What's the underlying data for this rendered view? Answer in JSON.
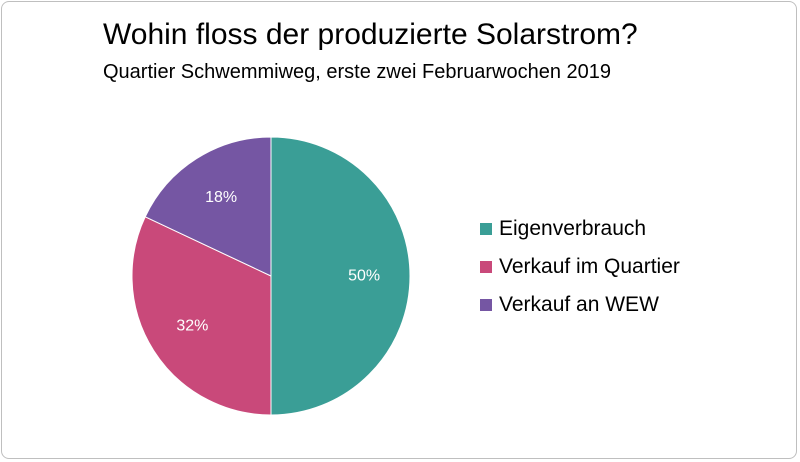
{
  "chart_data": {
    "type": "pie",
    "title": "Wohin floss der produzierte Solarstrom?",
    "subtitle": "Quartier Schwemmiweg, erste zwei Februarwochen 2019",
    "categories": [
      "Eigenverbrauch",
      "Verkauf im Quartier",
      "Verkauf an WEW"
    ],
    "values": [
      50,
      32,
      18
    ],
    "labels": [
      "50%",
      "32%",
      "18%"
    ],
    "colors": [
      "#3a9e96",
      "#c9497a",
      "#7556a3"
    ],
    "legend_position": "right",
    "label_color": "#ffffff"
  }
}
